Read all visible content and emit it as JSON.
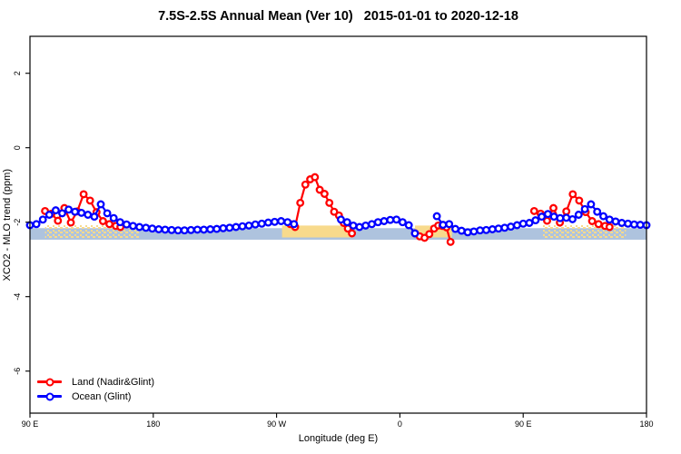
{
  "title": "7.5S-2.5S Annual Mean (Ver 10)   2015-01-01 to 2020-12-18",
  "legend": {
    "items": [
      {
        "label": "Land (Nadir&Glint)",
        "color": "#FF0000"
      },
      {
        "label": "Ocean (Glint)",
        "color": "#0000FF"
      }
    ]
  },
  "chart_data": {
    "type": "line",
    "title": "7.5S-2.5S Annual Mean (Ver 10)   2015-01-01 to 2020-12-18",
    "xlabel": "Longitude (deg E)",
    "ylabel": "XCO2 - MLO trend (ppm)",
    "grid": false,
    "legend_position": "bottom-left-inside",
    "x_axis": {
      "note": "longitude axis starts at 90E, wraps eastward through 180, 90W, 0, 90E and ends at 180 again (450 deg span); internal coordinate t = 90..540",
      "range": [
        90,
        540
      ],
      "ticks": [
        90,
        180,
        270,
        360,
        450,
        540
      ],
      "labels": [
        "90 E",
        "180",
        "90 W",
        "0",
        "90 E",
        "180"
      ]
    },
    "y_axis": {
      "range": [
        -7.1,
        3.0
      ],
      "ticks": [
        2,
        0,
        -2,
        -4,
        -6
      ],
      "labels": [
        "2",
        "0",
        "-2",
        "-4",
        "-6"
      ]
    },
    "marker": {
      "shape": "open-circle",
      "radius": 3.3,
      "stroke_width": 2.3,
      "fill": "#ffffff"
    },
    "line_width": 2.2,
    "bands": {
      "ocean": {
        "color": "#AEC3DE",
        "t_start": 90,
        "t_end": 540,
        "v_top": -2.16,
        "v_bottom": -2.47
      },
      "land": {
        "color": "#F8DA8C",
        "v_top": -2.09,
        "v_bottom": -2.41,
        "segments": [
          {
            "t_start": 101,
            "t_end": 170,
            "style": "speckled"
          },
          {
            "t_start": 274,
            "t_end": 326,
            "style": "solid"
          },
          {
            "t_start": 371,
            "t_end": 398,
            "style": "solid"
          },
          {
            "t_start": 464,
            "t_end": 525,
            "style": "speckled"
          }
        ]
      }
    },
    "series": [
      {
        "name": "Land (Nadir&Glint)",
        "color": "#FF0000",
        "segments": [
          [
            [
              101,
              -1.7
            ],
            [
              105.7,
              -1.77
            ],
            [
              110.4,
              -1.96
            ],
            [
              115.1,
              -1.62
            ],
            [
              119.8,
              -2.01
            ],
            [
              124.5,
              -1.71
            ],
            [
              129.2,
              -1.25
            ],
            [
              133.9,
              -1.42
            ],
            [
              138.6,
              -1.73
            ],
            [
              143.3,
              -1.97
            ],
            [
              148,
              -2.05
            ],
            [
              152.7,
              -2.1
            ],
            [
              156,
              -2.13
            ]
          ],
          [
            [
              280,
              -2.05
            ],
            [
              283.5,
              -2.13
            ],
            [
              287.3,
              -1.48
            ],
            [
              291,
              -0.99
            ],
            [
              294.5,
              -0.85
            ],
            [
              298,
              -0.79
            ],
            [
              301.5,
              -1.13
            ],
            [
              305,
              -1.24
            ],
            [
              308.5,
              -1.48
            ],
            [
              312,
              -1.72
            ],
            [
              315.5,
              -1.82
            ],
            [
              319,
              -2.02
            ],
            [
              322,
              -2.17
            ],
            [
              325,
              -2.3
            ]
          ],
          [
            [
              371,
              -2.3
            ],
            [
              374.5,
              -2.38
            ],
            [
              378,
              -2.42
            ],
            [
              381.5,
              -2.32
            ],
            [
              385,
              -2.17
            ],
            [
              388,
              -2.09
            ],
            [
              391,
              -2.1
            ],
            [
              394,
              -2.14
            ],
            [
              397,
              -2.53
            ]
          ],
          [
            [
              458,
              -1.7
            ],
            [
              462.7,
              -1.77
            ],
            [
              467.4,
              -1.96
            ],
            [
              472.1,
              -1.62
            ],
            [
              476.8,
              -2.01
            ],
            [
              481.5,
              -1.71
            ],
            [
              486.2,
              -1.25
            ],
            [
              490.9,
              -1.42
            ],
            [
              495.6,
              -1.73
            ],
            [
              500.3,
              -1.97
            ],
            [
              505,
              -2.05
            ],
            [
              509.7,
              -2.1
            ],
            [
              513,
              -2.13
            ]
          ]
        ]
      },
      {
        "name": "Ocean (Glint)",
        "color": "#0000FF",
        "segments": [
          [
            [
              90,
              -2.08
            ],
            [
              94.7,
              -2.05
            ],
            [
              99.4,
              -1.93
            ],
            [
              104.1,
              -1.8
            ],
            [
              108.8,
              -1.68
            ],
            [
              113.5,
              -1.76
            ],
            [
              118.2,
              -1.66
            ],
            [
              122.9,
              -1.72
            ],
            [
              127.6,
              -1.75
            ],
            [
              132.3,
              -1.8
            ],
            [
              137,
              -1.85
            ],
            [
              141.7,
              -1.52
            ],
            [
              146.4,
              -1.76
            ],
            [
              151.1,
              -1.89
            ],
            [
              155.8,
              -2.0
            ],
            [
              160.5,
              -2.06
            ],
            [
              165.2,
              -2.1
            ],
            [
              169.9,
              -2.13
            ],
            [
              174.6,
              -2.15
            ],
            [
              179.3,
              -2.17
            ],
            [
              184,
              -2.19
            ],
            [
              188.7,
              -2.2
            ],
            [
              193.4,
              -2.21
            ],
            [
              198.1,
              -2.22
            ],
            [
              202.8,
              -2.22
            ],
            [
              207.5,
              -2.21
            ],
            [
              212.2,
              -2.2
            ],
            [
              216.9,
              -2.2
            ],
            [
              221.6,
              -2.19
            ],
            [
              226.3,
              -2.18
            ],
            [
              231,
              -2.16
            ],
            [
              235.7,
              -2.15
            ],
            [
              240.4,
              -2.13
            ],
            [
              245.1,
              -2.11
            ],
            [
              249.8,
              -2.09
            ],
            [
              254.5,
              -2.06
            ],
            [
              259.2,
              -2.04
            ],
            [
              263.9,
              -2.01
            ],
            [
              268.6,
              -1.99
            ],
            [
              273.3,
              -1.97
            ],
            [
              278,
              -2.0
            ],
            [
              282.7,
              -2.05
            ]
          ],
          [
            [
              317,
              -1.93
            ],
            [
              321.5,
              -2.0
            ],
            [
              326,
              -2.09
            ],
            [
              330.5,
              -2.13
            ],
            [
              335,
              -2.09
            ],
            [
              339.5,
              -2.05
            ],
            [
              344,
              -2.0
            ],
            [
              348.5,
              -1.97
            ],
            [
              353,
              -1.94
            ],
            [
              357.5,
              -1.93
            ],
            [
              362,
              -2.0
            ],
            [
              366.5,
              -2.08
            ],
            [
              371,
              -2.3
            ]
          ],
          [
            [
              387,
              -1.84
            ],
            [
              391.5,
              -2.07
            ],
            [
              396,
              -2.05
            ],
            [
              400.5,
              -2.18
            ],
            [
              405,
              -2.23
            ],
            [
              409.5,
              -2.27
            ],
            [
              414,
              -2.25
            ],
            [
              418.5,
              -2.22
            ],
            [
              423,
              -2.21
            ],
            [
              427.5,
              -2.19
            ],
            [
              432,
              -2.17
            ],
            [
              436.5,
              -2.15
            ],
            [
              441,
              -2.12
            ],
            [
              445.5,
              -2.08
            ],
            [
              450,
              -2.04
            ],
            [
              454.5,
              -2.02
            ],
            [
              459,
              -1.95
            ],
            [
              463.5,
              -1.85
            ],
            [
              468,
              -1.78
            ],
            [
              472.5,
              -1.85
            ],
            [
              477,
              -1.89
            ],
            [
              481.5,
              -1.88
            ],
            [
              486,
              -1.92
            ],
            [
              490.5,
              -1.8
            ],
            [
              495,
              -1.65
            ],
            [
              499.5,
              -1.52
            ],
            [
              504,
              -1.72
            ],
            [
              508.5,
              -1.84
            ],
            [
              513,
              -1.93
            ],
            [
              517.5,
              -1.98
            ],
            [
              522,
              -2.02
            ],
            [
              526.5,
              -2.04
            ],
            [
              531,
              -2.06
            ],
            [
              535.5,
              -2.07
            ],
            [
              540,
              -2.08
            ]
          ]
        ]
      }
    ]
  }
}
